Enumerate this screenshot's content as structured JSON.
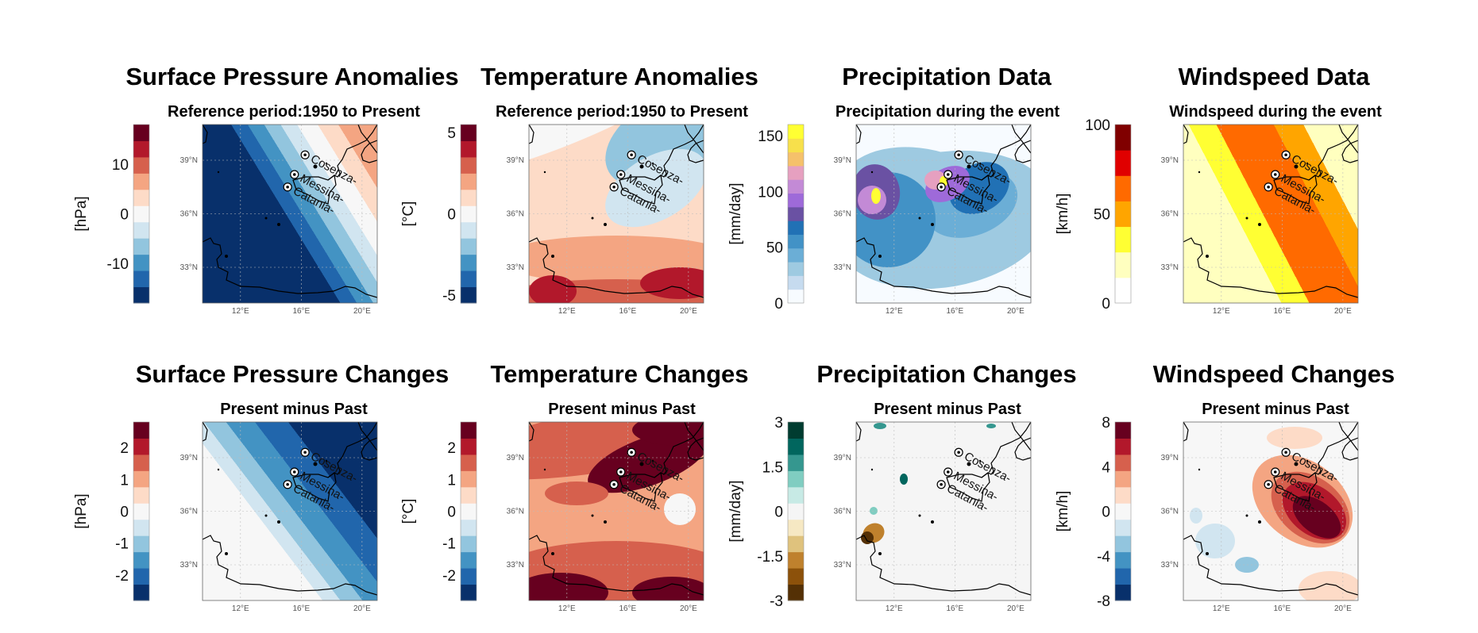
{
  "chart_data": [
    {
      "type": "heatmap",
      "title": "Surface Pressure Anomalies",
      "subtitle": "Reference period:1950 to Present",
      "colorbar": {
        "label": "[hPa]",
        "ticks": [
          "10",
          "0",
          "-10"
        ],
        "range": [
          -18,
          18
        ],
        "palette": "diverging"
      },
      "x_ticks": [
        "12°E",
        "16°E",
        "20°E"
      ],
      "y_ticks": [
        "39°N",
        "36°N",
        "33°N"
      ],
      "cities": [
        "Cosenza-",
        "Catania-",
        "Messina-"
      ]
    },
    {
      "type": "heatmap",
      "title": "Temperature Anomalies",
      "subtitle": "Reference period:1950 to Present",
      "colorbar": {
        "label": "[°C]",
        "ticks": [
          "5",
          "0",
          "-5"
        ],
        "range": [
          -5.5,
          5.5
        ],
        "palette": "diverging"
      },
      "x_ticks": [
        "12°E",
        "16°E",
        "20°E"
      ],
      "y_ticks": [
        "39°N",
        "36°N",
        "33°N"
      ],
      "cities": [
        "Cosenza-",
        "Catania-",
        "Messina-"
      ]
    },
    {
      "type": "heatmap",
      "title": "Precipitation Data",
      "subtitle": "Precipitation during the event",
      "colorbar": {
        "label": "[mm/day]",
        "ticks": [
          "150",
          "100",
          "50",
          "0"
        ],
        "range": [
          0,
          160
        ],
        "palette": "precip"
      },
      "x_ticks": [
        "12°E",
        "16°E",
        "20°E"
      ],
      "y_ticks": [
        "39°N",
        "36°N",
        "33°N"
      ],
      "cities": [
        "Cosenza-",
        "Catania-",
        "Messina-"
      ]
    },
    {
      "type": "heatmap",
      "title": "Windspeed Data",
      "subtitle": "Windspeed during the event",
      "colorbar": {
        "label": "[km/h]",
        "ticks": [
          "100",
          "50",
          "0"
        ],
        "range": [
          0,
          100
        ],
        "palette": "wind"
      },
      "x_ticks": [
        "12°E",
        "16°E",
        "20°E"
      ],
      "y_ticks": [
        "39°N",
        "36°N",
        "33°N"
      ],
      "cities": [
        "Cosenza-",
        "Catania-",
        "Messina-"
      ]
    },
    {
      "type": "heatmap",
      "title": "Surface Pressure Changes",
      "subtitle": "Present minus Past",
      "colorbar": {
        "label": "[hPa]",
        "ticks": [
          "2",
          "1",
          "0",
          "-1",
          "-2"
        ],
        "range": [
          -2.8,
          2.8
        ],
        "palette": "diverging"
      },
      "x_ticks": [
        "12°E",
        "16°E",
        "20°E"
      ],
      "y_ticks": [
        "39°N",
        "36°N",
        "33°N"
      ],
      "cities": [
        "Cosenza-",
        "Catania-",
        "Messina-"
      ]
    },
    {
      "type": "heatmap",
      "title": "Temperature Changes",
      "subtitle": "Present minus Past",
      "colorbar": {
        "label": "[°C]",
        "ticks": [
          "2",
          "1",
          "0",
          "-1",
          "-2"
        ],
        "range": [
          -2.8,
          2.8
        ],
        "palette": "diverging"
      },
      "x_ticks": [
        "12°E",
        "16°E",
        "20°E"
      ],
      "y_ticks": [
        "39°N",
        "36°N",
        "33°N"
      ],
      "cities": [
        "Cosenza-",
        "Catania-",
        "Messina-"
      ]
    },
    {
      "type": "heatmap",
      "title": "Precipitation Changes",
      "subtitle": "Present minus Past",
      "colorbar": {
        "label": "[mm/day]",
        "ticks": [
          "3",
          "1.5",
          "0",
          "-1.5",
          "-3"
        ],
        "range": [
          -3,
          3
        ],
        "palette": "brbg"
      },
      "x_ticks": [
        "12°E",
        "16°E",
        "20°E"
      ],
      "y_ticks": [
        "39°N",
        "36°N",
        "33°N"
      ],
      "cities": [
        "Cosenza-",
        "Catania-",
        "Messina-"
      ]
    },
    {
      "type": "heatmap",
      "title": "Windspeed Changes",
      "subtitle": "Present minus Past",
      "colorbar": {
        "label": "[km/h]",
        "ticks": [
          "8",
          "4",
          "0",
          "-4",
          "-8"
        ],
        "range": [
          -8,
          8
        ],
        "palette": "diverging"
      },
      "x_ticks": [
        "12°E",
        "16°E",
        "20°E"
      ],
      "y_ticks": [
        "39°N",
        "36°N",
        "33°N"
      ],
      "cities": [
        "Cosenza-",
        "Catania-",
        "Messina-"
      ]
    }
  ],
  "palettes": {
    "diverging": [
      "#08306b",
      "#2166ac",
      "#4393c3",
      "#92c5de",
      "#d1e5f0",
      "#f7f7f7",
      "#fddbc7",
      "#f4a582",
      "#d6604d",
      "#b2182b",
      "#67001f"
    ],
    "precip": [
      "#f7fbff",
      "#c6dbef",
      "#9ecae1",
      "#6baed6",
      "#4292c6",
      "#2171b5",
      "#6a51a3",
      "#9e6ad9",
      "#c38ad6",
      "#e6a0c0",
      "#f5c16b",
      "#f7e04b",
      "#ffff33"
    ],
    "wind": [
      "#ffffff",
      "#ffffbf",
      "#ffff33",
      "#ffa500",
      "#ff6a00",
      "#e00000",
      "#800000"
    ],
    "brbg": [
      "#543005",
      "#8c510a",
      "#bf812d",
      "#dfc27d",
      "#f6e8c3",
      "#f5f5f5",
      "#c7eae5",
      "#80cdc1",
      "#35978f",
      "#01665e",
      "#003c30"
    ]
  }
}
